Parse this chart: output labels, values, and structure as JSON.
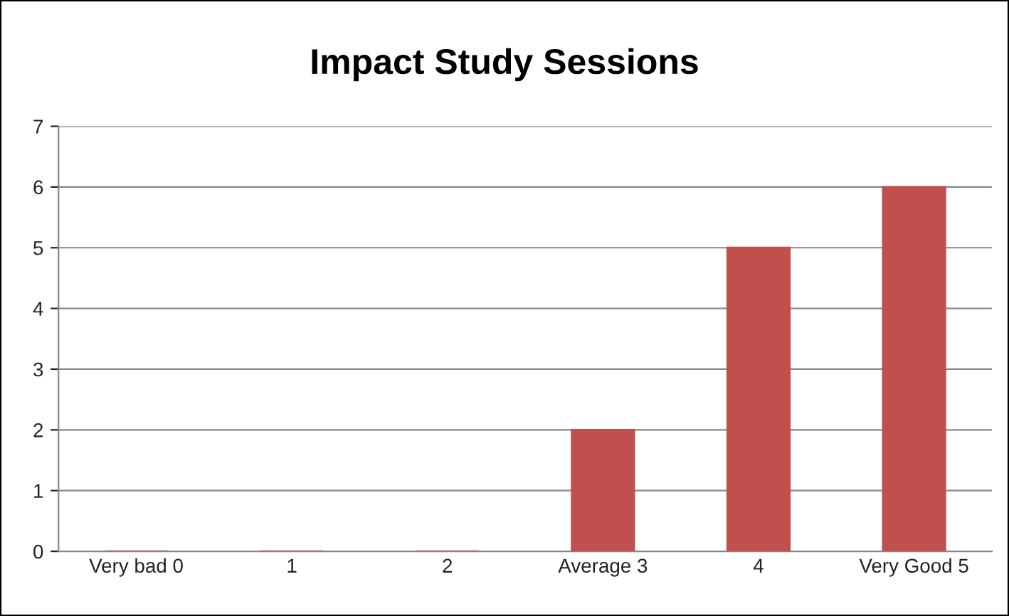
{
  "chart_data": {
    "type": "bar",
    "title": "Impact Study Sessions",
    "categories": [
      "Very bad 0",
      "1",
      "2",
      "Average 3",
      "4",
      "Very Good 5"
    ],
    "values": [
      0,
      0,
      0,
      2,
      5,
      6
    ],
    "color": "#c0504d",
    "ylim": [
      0,
      7
    ],
    "yticks": [
      0,
      1,
      2,
      3,
      4,
      5,
      6,
      7
    ],
    "grid": "y",
    "legend": false
  }
}
